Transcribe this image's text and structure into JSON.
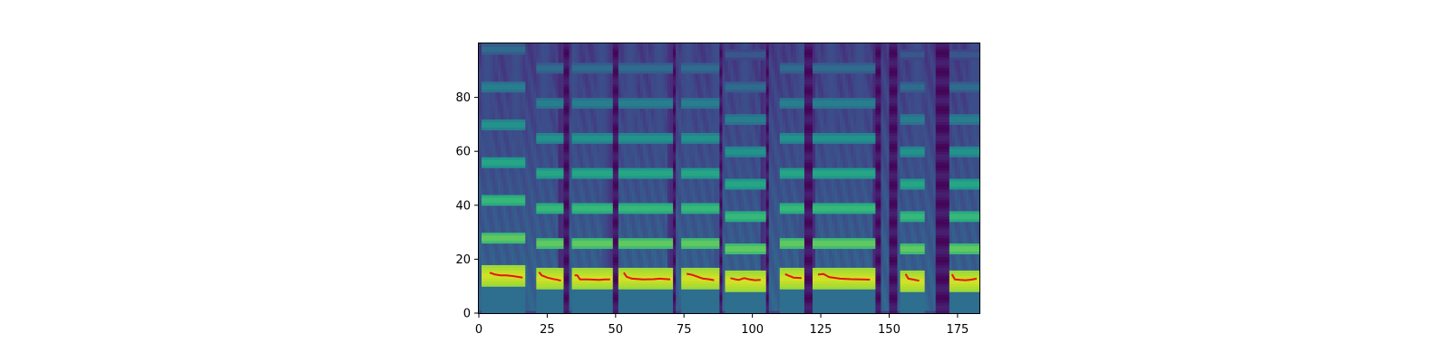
{
  "chart_data": {
    "type": "heatmap",
    "title": "",
    "xlabel": "",
    "ylabel": "",
    "xlim": [
      0,
      183
    ],
    "ylim": [
      0,
      100
    ],
    "x_ticks": [
      "0",
      "25",
      "50",
      "75",
      "100",
      "125",
      "150",
      "175"
    ],
    "y_ticks": [
      "0",
      "20",
      "40",
      "60",
      "80"
    ],
    "colormap": "viridis",
    "grid": false,
    "heatmap": {
      "voiced_segments": [
        {
          "start": 2,
          "end": 16,
          "f0": 14,
          "gap_before": false
        },
        {
          "start": 22,
          "end": 30,
          "f0": 13,
          "gap_before": true
        },
        {
          "start": 35,
          "end": 48,
          "f0": 13,
          "gap_before": true
        },
        {
          "start": 52,
          "end": 70,
          "f0": 13,
          "gap_before": true
        },
        {
          "start": 75,
          "end": 87,
          "f0": 13,
          "gap_before": true
        },
        {
          "start": 91,
          "end": 104,
          "f0": 12,
          "gap_before": false
        },
        {
          "start": 111,
          "end": 118,
          "f0": 13,
          "gap_before": true
        },
        {
          "start": 123,
          "end": 144,
          "f0": 13,
          "gap_before": true
        },
        {
          "start": 155,
          "end": 162,
          "f0": 12,
          "gap_before": true
        },
        {
          "start": 173,
          "end": 182,
          "f0": 12,
          "gap_before": false
        }
      ],
      "dark_bands": [
        {
          "start": 29,
          "end": 33
        },
        {
          "start": 45,
          "end": 51
        },
        {
          "start": 69,
          "end": 72
        },
        {
          "start": 86,
          "end": 89
        },
        {
          "start": 103,
          "end": 106
        },
        {
          "start": 117,
          "end": 123
        },
        {
          "start": 144,
          "end": 147
        },
        {
          "start": 150,
          "end": 153
        },
        {
          "start": 167,
          "end": 172
        }
      ]
    },
    "series": [
      {
        "color": "#e8140d",
        "segments": [
          {
            "x": [
              4,
              6,
              8,
              10,
              12,
              14,
              16
            ],
            "y": [
              15,
              14.3,
              14,
              14,
              13.8,
              13.5,
              13.2
            ]
          },
          {
            "x": [
              22,
              23,
              25,
              27,
              29,
              30
            ],
            "y": [
              15.2,
              14,
              13.2,
              12.7,
              12.3,
              12
            ]
          },
          {
            "x": [
              35,
              36,
              37,
              40,
              44,
              46,
              48
            ],
            "y": [
              14,
              14,
              12.5,
              12.5,
              12.3,
              12.5,
              12.5
            ]
          },
          {
            "x": [
              53,
              54,
              56,
              60,
              64,
              66,
              70
            ],
            "y": [
              15,
              13.5,
              12.8,
              12.5,
              12.6,
              12.8,
              12.5
            ]
          },
          {
            "x": [
              76,
              78,
              80,
              82,
              84,
              86
            ],
            "y": [
              14.6,
              14.2,
              13.5,
              12.8,
              12.6,
              12.2
            ]
          },
          {
            "x": [
              92,
              94,
              95,
              97,
              99,
              101,
              103
            ],
            "y": [
              13,
              12.5,
              12.3,
              13,
              12.5,
              12.2,
              12.3
            ]
          },
          {
            "x": [
              112,
              113,
              115,
              118
            ],
            "y": [
              14.5,
              14,
              13.2,
              13
            ]
          },
          {
            "x": [
              124,
              126,
              128,
              132,
              136,
              140,
              143
            ],
            "y": [
              14.3,
              14.5,
              13.4,
              12.8,
              12.6,
              12.5,
              12.4
            ]
          },
          {
            "x": [
              156,
              157,
              159,
              161
            ],
            "y": [
              14.5,
              12.8,
              12.4,
              12
            ]
          },
          {
            "x": [
              173,
              174,
              176,
              178,
              180,
              182
            ],
            "y": [
              14.4,
              12.5,
              12.3,
              12.2,
              12.4,
              12.8
            ]
          }
        ]
      }
    ]
  }
}
